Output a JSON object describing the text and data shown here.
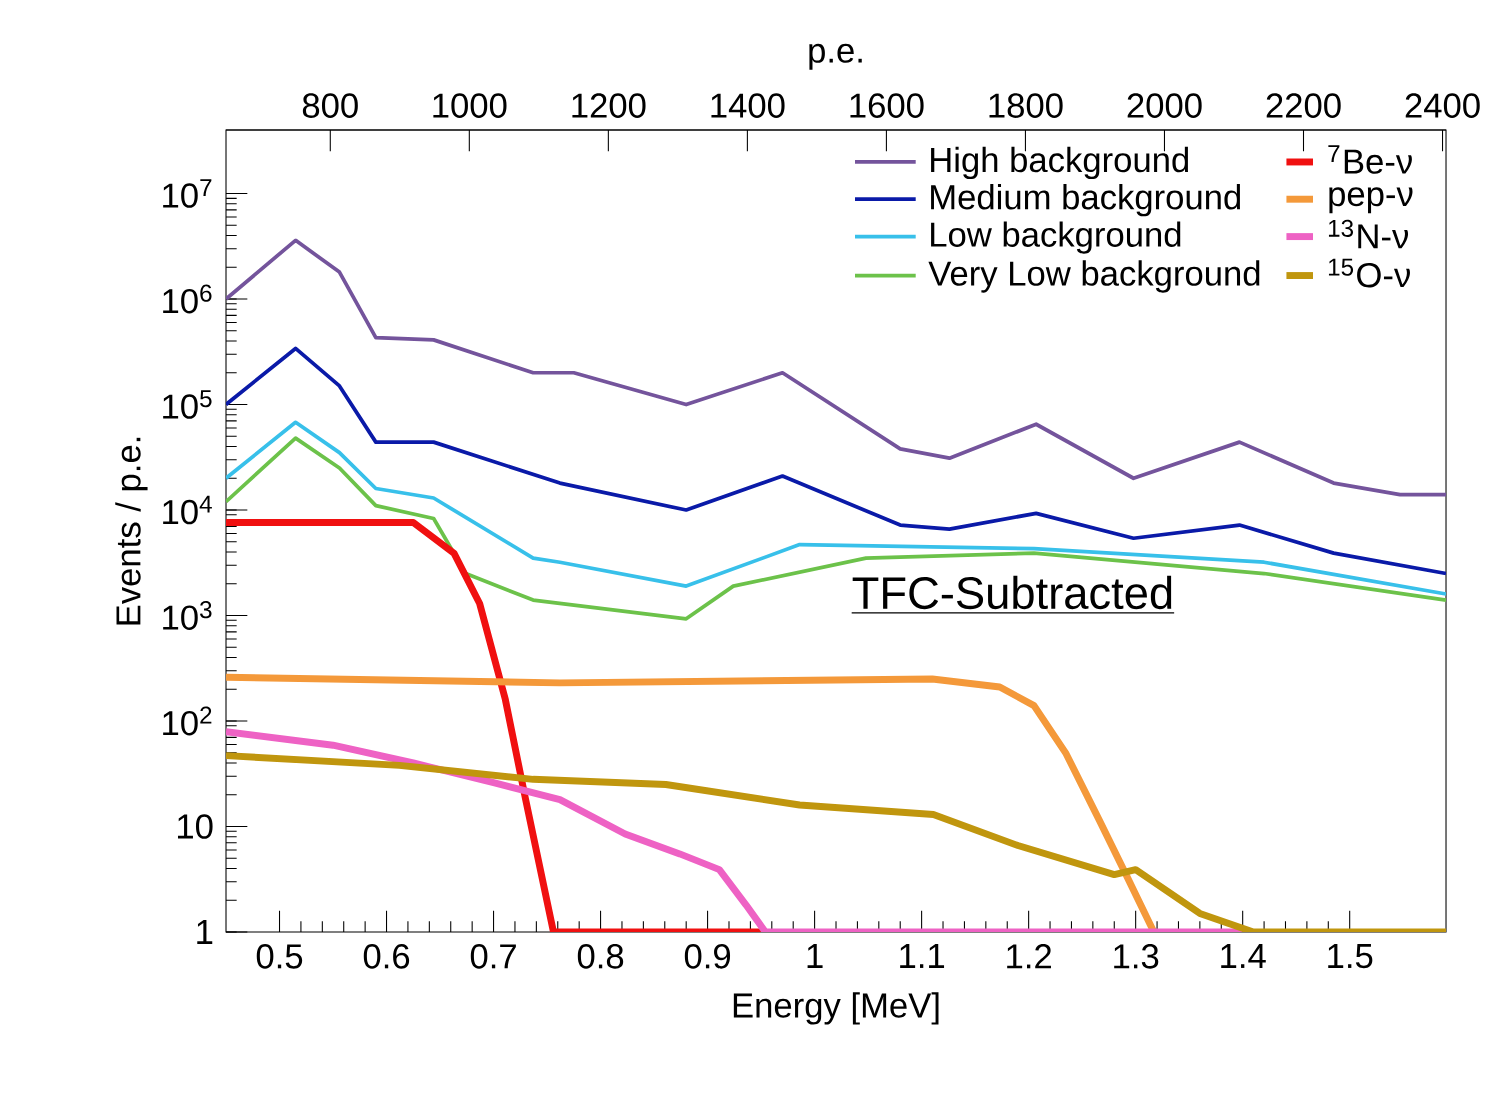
{
  "chart_data": {
    "type": "line",
    "xlabel": "Energy [MeV]",
    "ylabel": "Events / p.e.",
    "x2label": "p.e.",
    "xlim": [
      0.45,
      1.59
    ],
    "xticks": [
      0.5,
      0.6,
      0.7,
      0.8,
      0.9,
      1,
      1.1,
      1.2,
      1.3,
      1.4,
      1.5
    ],
    "x2lim": [
      650,
      2405
    ],
    "x2ticks": [
      800,
      1000,
      1200,
      1400,
      1600,
      1800,
      2000,
      2200,
      2400
    ],
    "ylim": [
      1,
      40000000
    ],
    "yticks": [
      1,
      10,
      {
        "value": 100,
        "label": "10$^{2}$"
      },
      {
        "value": 1000,
        "label": "10$^{3}$"
      },
      {
        "value": 10000,
        "label": "10$^{4}$"
      },
      {
        "value": 100000,
        "label": "10$^{5}$"
      },
      {
        "value": 1000000,
        "label": "10$^{6}$"
      },
      {
        "value": 10000000,
        "label": "10$^{7}$"
      }
    ],
    "log": "y",
    "legend": "top right",
    "annotations": [
      "TFC-Subtracted"
    ],
    "series": [
      {
        "name": "High background",
        "color": "#74549c",
        "x": [
          0.45,
          0.515,
          0.556,
          0.59,
          0.644,
          0.737,
          0.775,
          0.88,
          0.97,
          1.08,
          1.126,
          1.207,
          1.298,
          1.397,
          1.485,
          1.547,
          1.59
        ],
        "values": [
          1000000,
          3600000,
          1800000,
          430000,
          410000,
          200000,
          200000,
          100000,
          200000,
          38000,
          31000,
          65000,
          20000,
          44000,
          18000,
          14000,
          14000
        ]
      },
      {
        "name": "Medium background",
        "color": "#0a1aa8",
        "x": [
          0.45,
          0.515,
          0.556,
          0.59,
          0.644,
          0.762,
          0.88,
          0.97,
          1.08,
          1.126,
          1.207,
          1.298,
          1.397,
          1.485,
          1.59
        ],
        "values": [
          100000,
          340000,
          150000,
          44000,
          44000,
          18000,
          10000,
          21000,
          7200,
          6600,
          9300,
          5400,
          7200,
          3900,
          2500
        ]
      },
      {
        "name": "Low background",
        "color": "#38c0ea",
        "x": [
          0.45,
          0.515,
          0.556,
          0.59,
          0.644,
          0.737,
          0.762,
          0.88,
          0.986,
          1.205,
          1.42,
          1.59
        ],
        "values": [
          20000,
          68000,
          35000,
          16000,
          13000,
          3500,
          3200,
          1900,
          4700,
          4300,
          3200,
          1600
        ]
      },
      {
        "name": "Very Low background",
        "color": "#6cc24a",
        "x": [
          0.45,
          0.515,
          0.556,
          0.59,
          0.644,
          0.674,
          0.737,
          0.88,
          0.924,
          1.048,
          1.205,
          1.42,
          1.59
        ],
        "values": [
          12000,
          48000,
          25000,
          11000,
          8300,
          2500,
          1400,
          930,
          1900,
          3500,
          3900,
          2500,
          1400
        ]
      },
      {
        "name": "$^{7}$Be-ν",
        "color": "#f01010",
        "x": [
          0.45,
          0.625,
          0.663,
          0.687,
          0.711,
          0.73,
          0.756,
          0.955
        ],
        "values": [
          7600,
          7600,
          3900,
          1300,
          160,
          18,
          1,
          1
        ]
      },
      {
        "name": "pep-ν",
        "color": "#f4993a",
        "x": [
          0.45,
          0.762,
          1.11,
          1.173,
          1.205,
          1.235,
          1.266,
          1.291,
          1.317
        ],
        "values": [
          260,
          230,
          250,
          210,
          140,
          49,
          11.5,
          3.5,
          1
        ]
      },
      {
        "name": "$^{13}$N-ν",
        "color": "#ee62c4",
        "x": [
          0.45,
          0.55,
          0.625,
          0.7,
          0.762,
          0.823,
          0.874,
          0.911,
          0.936,
          0.954,
          1.4
        ],
        "values": [
          79,
          59,
          40,
          26,
          18,
          8.5,
          5.5,
          3.9,
          1.8,
          1,
          1
        ]
      },
      {
        "name": "$^{15}$O-ν",
        "color": "#c0960e",
        "x": [
          0.45,
          0.612,
          0.737,
          0.861,
          0.986,
          1.111,
          1.19,
          1.28,
          1.3,
          1.36,
          1.41,
          1.59
        ],
        "values": [
          47,
          38,
          28,
          25,
          16,
          13,
          6.6,
          3.5,
          3.9,
          1.5,
          1,
          1
        ]
      }
    ]
  }
}
